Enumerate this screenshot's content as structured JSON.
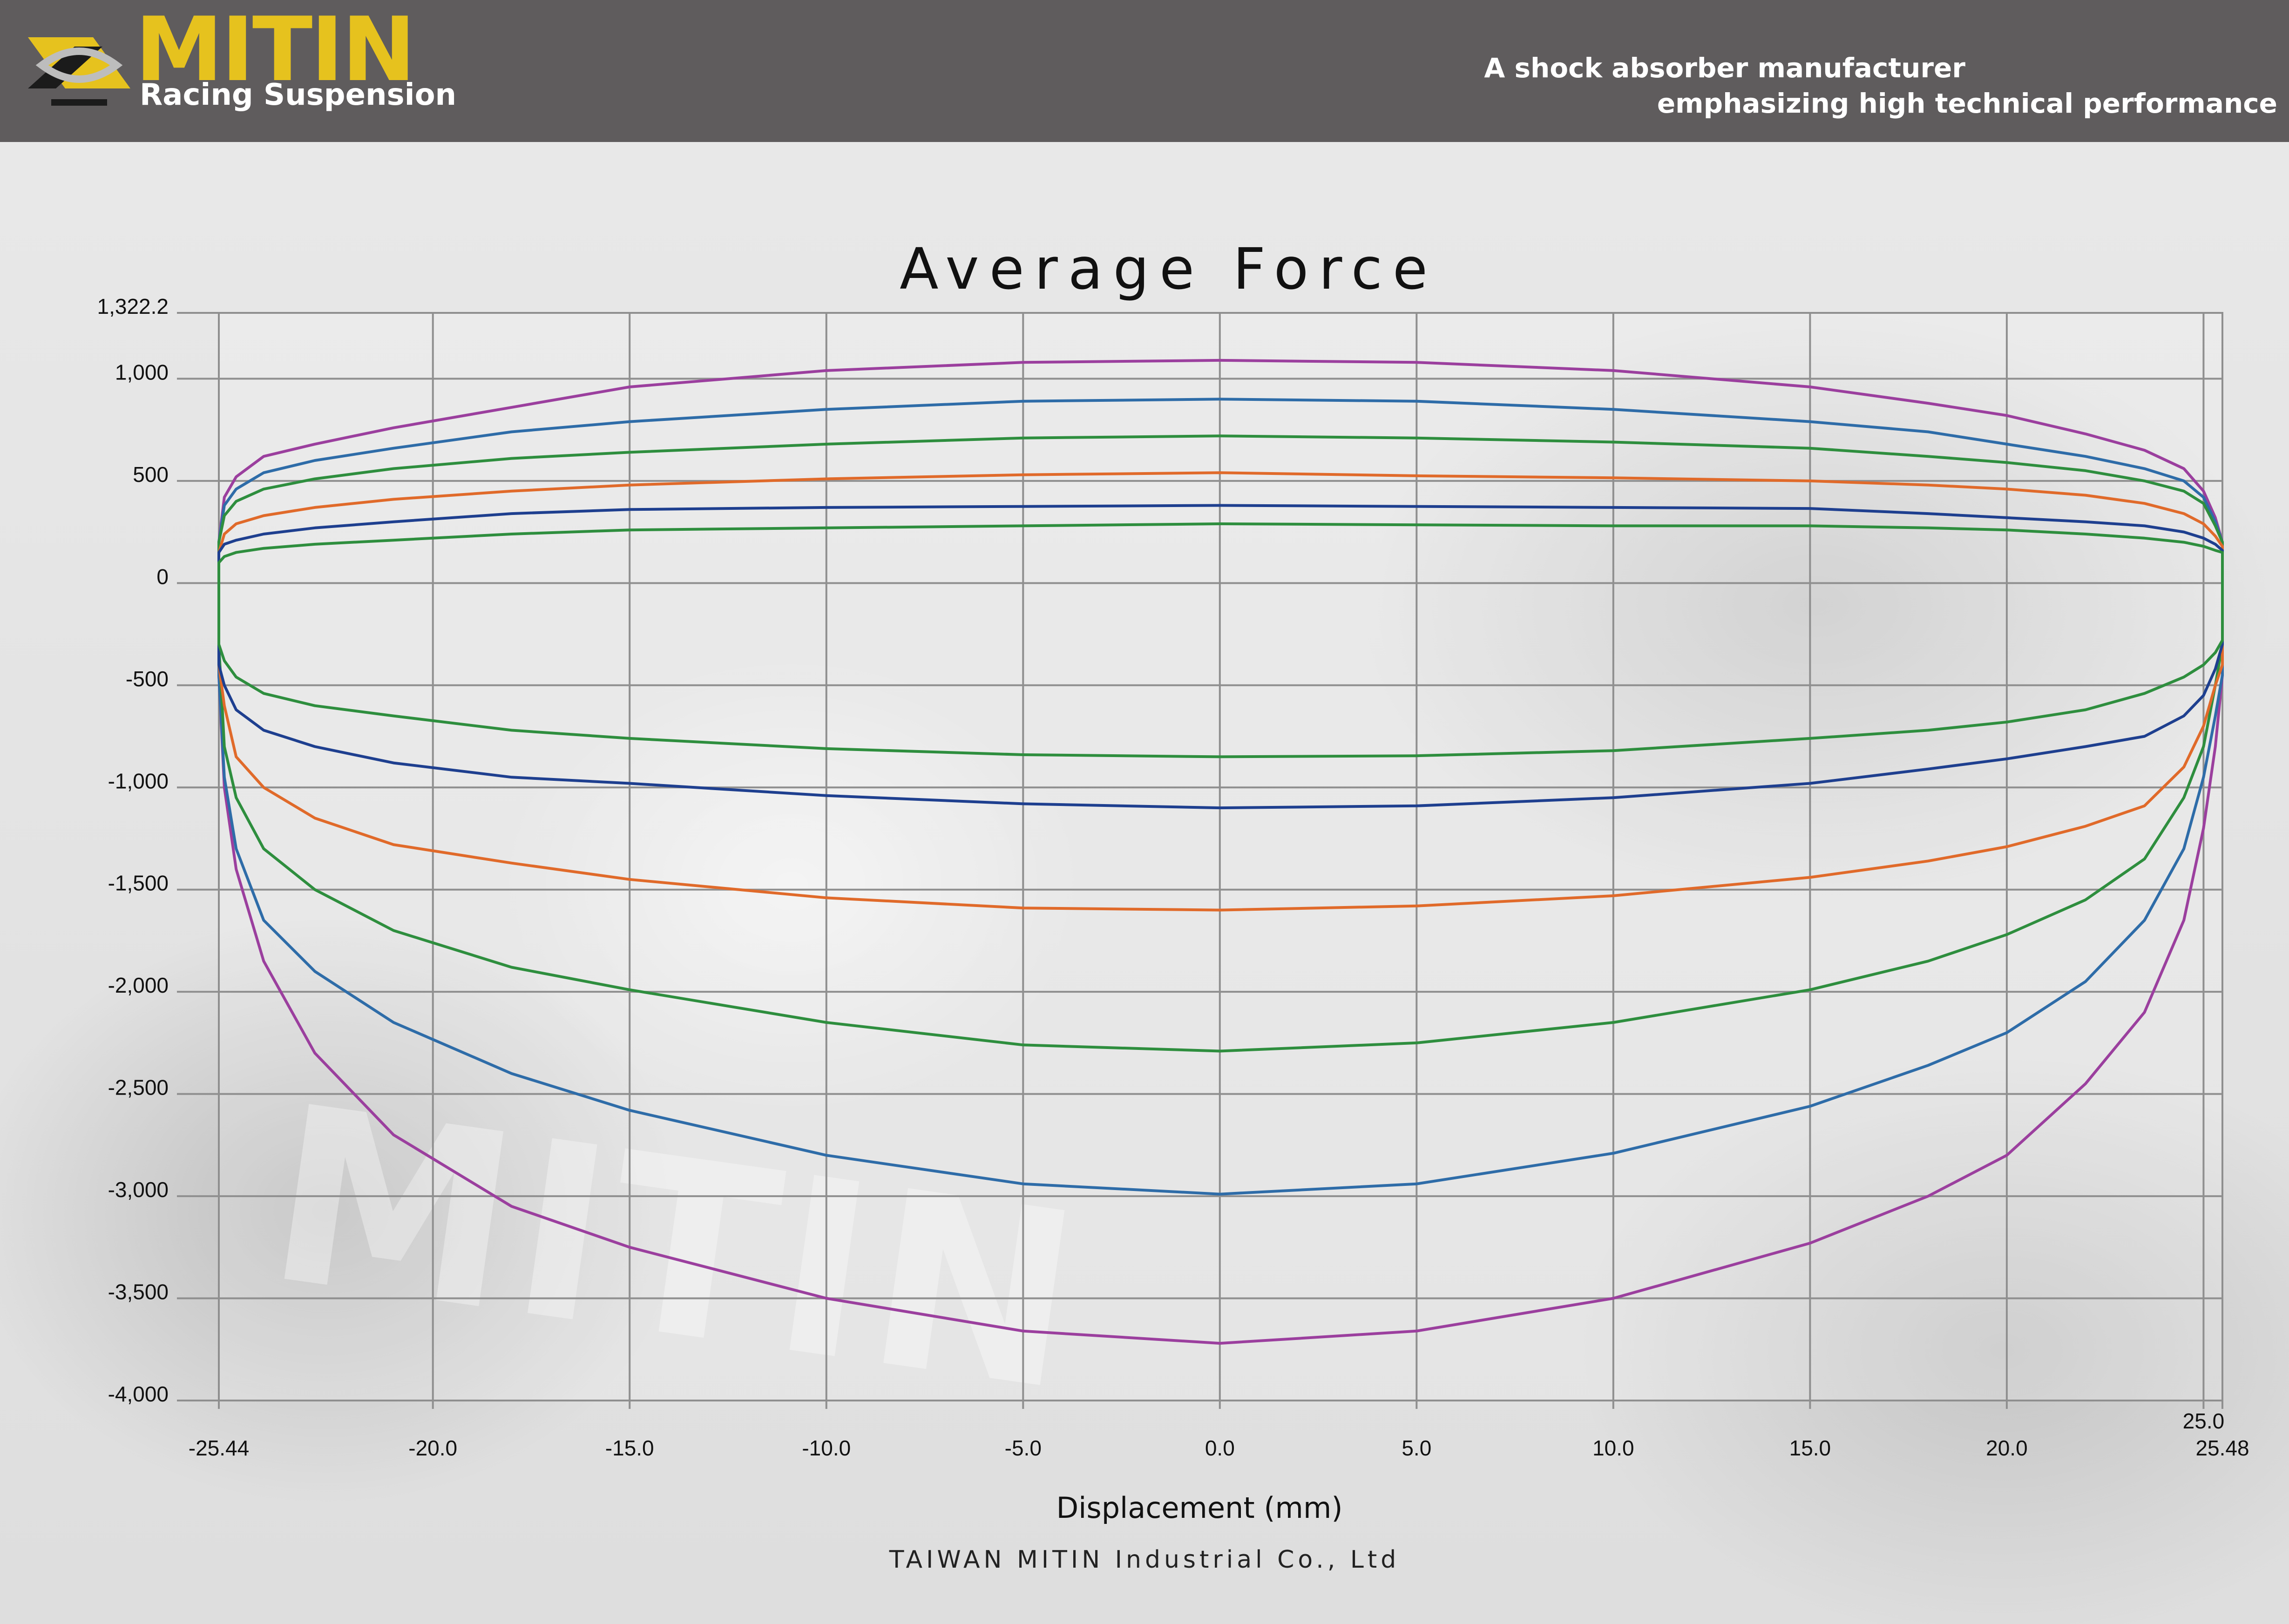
{
  "header": {
    "brand": "MITIN",
    "brand_sub": "Racing Suspension",
    "tagline_line1": "A shock absorber manufacturer",
    "tagline_line2": "emphasizing high technical performance",
    "background_color": "#5f5c5d",
    "brand_color": "#e6c21e"
  },
  "footer": {
    "company": "TAIWAN MITIN Industrial Co., Ltd"
  },
  "chart_data": {
    "type": "line",
    "title": "Average Force",
    "xlabel": "Displacement (mm)",
    "ylabel": "",
    "xlim": [
      -25.44,
      25.48
    ],
    "ylim": [
      -4000,
      1322.2
    ],
    "grid": true,
    "legend": "none",
    "x_ticks": [
      {
        "value": -25.44,
        "label": "-25.44"
      },
      {
        "value": -20,
        "label": "-20.0"
      },
      {
        "value": -15,
        "label": "-15.0"
      },
      {
        "value": -10,
        "label": "-10.0"
      },
      {
        "value": -5,
        "label": "-5.0"
      },
      {
        "value": 0,
        "label": "0.0"
      },
      {
        "value": 5,
        "label": "5.0"
      },
      {
        "value": 10,
        "label": "10.0"
      },
      {
        "value": 15,
        "label": "15.0"
      },
      {
        "value": 20,
        "label": "20.0"
      },
      {
        "value": 25,
        "label": "25.0"
      },
      {
        "value": 25.48,
        "label": "25.48"
      }
    ],
    "y_ticks": [
      {
        "value": 1322.2,
        "label": "1,322.2"
      },
      {
        "value": 1000,
        "label": "1,000"
      },
      {
        "value": 500,
        "label": "500"
      },
      {
        "value": 0,
        "label": "0"
      },
      {
        "value": -500,
        "label": "-500"
      },
      {
        "value": -1000,
        "label": "-1,000"
      },
      {
        "value": -1500,
        "label": "-1,500"
      },
      {
        "value": -2000,
        "label": "-2,000"
      },
      {
        "value": -2500,
        "label": "-2,500"
      },
      {
        "value": -3000,
        "label": "-3,000"
      },
      {
        "value": -3500,
        "label": "-3,500"
      },
      {
        "value": -4000,
        "label": "-4,000"
      }
    ],
    "series": [
      {
        "color": "#9b3f9e",
        "x": [
          -25.44,
          -25.3,
          -25,
          -24.3,
          -23,
          -21,
          -18,
          -15,
          -10,
          -5,
          0,
          5,
          10,
          15,
          18,
          20,
          22,
          23.5,
          24.5,
          25,
          25.3,
          25.48
        ],
        "upper": [
          200,
          420,
          520,
          620,
          680,
          760,
          860,
          960,
          1040,
          1080,
          1090,
          1080,
          1040,
          960,
          880,
          820,
          730,
          650,
          560,
          450,
          320,
          200
        ],
        "lower": [
          -450,
          -1000,
          -1400,
          -1850,
          -2300,
          -2700,
          -3050,
          -3250,
          -3500,
          -3660,
          -3720,
          -3660,
          -3500,
          -3230,
          -3000,
          -2800,
          -2450,
          -2100,
          -1650,
          -1200,
          -800,
          -450
        ]
      },
      {
        "color": "#2e6ca8",
        "x": [
          -25.44,
          -25.3,
          -25,
          -24.3,
          -23,
          -21,
          -18,
          -15,
          -10,
          -5,
          0,
          5,
          10,
          15,
          18,
          20,
          22,
          23.5,
          24.5,
          25,
          25.3,
          25.48
        ],
        "upper": [
          200,
          380,
          460,
          540,
          600,
          660,
          740,
          790,
          850,
          890,
          900,
          890,
          850,
          790,
          740,
          680,
          620,
          560,
          500,
          420,
          300,
          200
        ],
        "lower": [
          -450,
          -950,
          -1300,
          -1650,
          -1900,
          -2150,
          -2400,
          -2580,
          -2800,
          -2940,
          -2990,
          -2940,
          -2790,
          -2560,
          -2360,
          -2200,
          -1950,
          -1650,
          -1300,
          -950,
          -650,
          -450
        ]
      },
      {
        "color": "#2e8e3e",
        "x": [
          -25.44,
          -25.3,
          -25,
          -24.3,
          -23,
          -21,
          -18,
          -15,
          -10,
          -5,
          0,
          5,
          10,
          15,
          18,
          20,
          22,
          23.5,
          24.5,
          25,
          25.3,
          25.48
        ],
        "upper": [
          200,
          330,
          400,
          460,
          510,
          560,
          610,
          640,
          680,
          710,
          720,
          710,
          690,
          660,
          620,
          590,
          550,
          500,
          450,
          390,
          280,
          200
        ],
        "lower": [
          -300,
          -800,
          -1050,
          -1300,
          -1500,
          -1700,
          -1880,
          -1990,
          -2150,
          -2260,
          -2290,
          -2250,
          -2150,
          -1990,
          -1850,
          -1720,
          -1550,
          -1350,
          -1050,
          -800,
          -500,
          -300
        ]
      },
      {
        "color": "#e06a2a",
        "x": [
          -25.44,
          -25.3,
          -25,
          -24.3,
          -23,
          -21,
          -18,
          -15,
          -10,
          -5,
          0,
          5,
          10,
          15,
          18,
          20,
          22,
          23.5,
          24.5,
          25,
          25.3,
          25.48
        ],
        "upper": [
          150,
          240,
          290,
          330,
          370,
          410,
          450,
          480,
          510,
          530,
          540,
          525,
          515,
          500,
          480,
          460,
          430,
          390,
          340,
          290,
          230,
          180
        ],
        "lower": [
          -400,
          -600,
          -850,
          -1000,
          -1150,
          -1280,
          -1370,
          -1450,
          -1540,
          -1590,
          -1600,
          -1580,
          -1530,
          -1440,
          -1360,
          -1290,
          -1190,
          -1090,
          -900,
          -700,
          -500,
          -400
        ]
      },
      {
        "color": "#1e3f8f",
        "x": [
          -25.44,
          -25.3,
          -25,
          -24.3,
          -23,
          -21,
          -18,
          -15,
          -10,
          -5,
          0,
          5,
          10,
          15,
          18,
          20,
          22,
          23.5,
          24.5,
          25,
          25.3,
          25.48
        ],
        "upper": [
          150,
          190,
          210,
          240,
          270,
          300,
          340,
          360,
          370,
          375,
          380,
          375,
          370,
          365,
          340,
          320,
          300,
          280,
          250,
          220,
          190,
          160
        ],
        "lower": [
          -400,
          -500,
          -620,
          -720,
          -800,
          -880,
          -950,
          -980,
          -1040,
          -1080,
          -1100,
          -1090,
          -1050,
          -980,
          -910,
          -860,
          -800,
          -750,
          -650,
          -550,
          -420,
          -300
        ]
      },
      {
        "color": "#2e8e3e",
        "x": [
          -25.44,
          -25.3,
          -25,
          -24.3,
          -23,
          -21,
          -18,
          -15,
          -10,
          -5,
          0,
          5,
          10,
          15,
          18,
          20,
          22,
          23.5,
          24.5,
          25,
          25.3,
          25.48
        ],
        "upper": [
          100,
          130,
          150,
          170,
          190,
          210,
          240,
          260,
          270,
          280,
          290,
          285,
          280,
          280,
          270,
          260,
          240,
          220,
          200,
          180,
          160,
          150
        ],
        "lower": [
          -300,
          -380,
          -460,
          -540,
          -600,
          -650,
          -720,
          -760,
          -810,
          -840,
          -850,
          -845,
          -820,
          -760,
          -720,
          -680,
          -620,
          -540,
          -460,
          -400,
          -340,
          -280
        ]
      }
    ]
  }
}
